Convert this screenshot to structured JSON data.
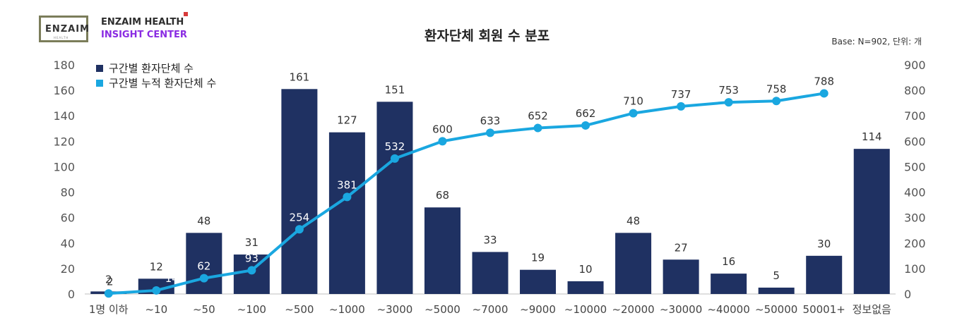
{
  "header": {
    "logo_text": "ENZAIM",
    "logo_subtext": "HEALTH",
    "brand_line1": "ENZAIM HEALTH",
    "brand_line2": "INSIGHT CENTER",
    "title": "환자단체 회원 수 분포",
    "base_note": "Base: N=902, 단위: 개"
  },
  "chart_data": {
    "type": "bar",
    "title": "환자단체 회원 수 분포",
    "categories": [
      "1명 이하",
      "~10",
      "~50",
      "~100",
      "~500",
      "~1000",
      "~3000",
      "~5000",
      "~7000",
      "~9000",
      "~10000",
      "~20000",
      "~30000",
      "~40000",
      "~50000",
      "50001+",
      "정보없음"
    ],
    "series": [
      {
        "name": "구간별 환자단체 수",
        "type": "bar",
        "axis": "left",
        "color": "#1f3162",
        "values": [
          2,
          12,
          48,
          31,
          161,
          127,
          151,
          68,
          33,
          19,
          10,
          48,
          27,
          16,
          5,
          30,
          114
        ]
      },
      {
        "name": "구간별 누적 환자단체 수",
        "type": "line",
        "axis": "right",
        "color": "#1aa7e0",
        "values": [
          2,
          14,
          62,
          93,
          254,
          381,
          532,
          600,
          633,
          652,
          662,
          710,
          737,
          753,
          758,
          788,
          null
        ]
      }
    ],
    "ylim_left": [
      0,
      180
    ],
    "yticks_left": [
      "0",
      "20",
      "40",
      "60",
      "80",
      "100",
      "120",
      "140",
      "160",
      "180"
    ],
    "ylim_right": [
      0,
      900
    ],
    "yticks_right": [
      "0",
      "100",
      "200",
      "300",
      "400",
      "500",
      "600",
      "700",
      "800",
      "900"
    ],
    "legend_position": "top-left",
    "grid": false
  }
}
